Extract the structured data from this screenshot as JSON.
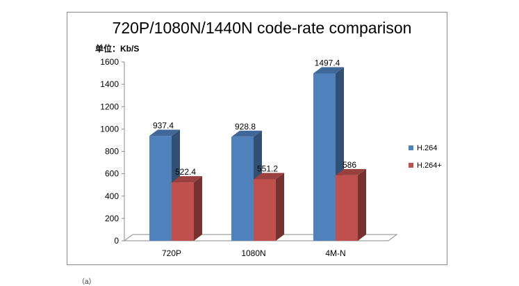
{
  "chart_data": {
    "type": "bar",
    "title": "720P/1080N/1440N code-rate comparison",
    "unit_label": "单位：Kb/S",
    "categories": [
      "720P",
      "1080N",
      "4M-N"
    ],
    "series": [
      {
        "name": "H.264",
        "color": "#4f81bd",
        "values": [
          937.4,
          928.8,
          1497.4
        ],
        "labels": [
          "937.4",
          "928.8",
          "1497.4"
        ]
      },
      {
        "name": "H.264+",
        "color": "#c0504d",
        "values": [
          522.4,
          551.2,
          586
        ],
        "labels": [
          "522.4",
          "551.2",
          "586"
        ]
      }
    ],
    "ylim": [
      0,
      1600
    ],
    "yticks": [
      0,
      200,
      400,
      600,
      800,
      1000,
      1200,
      1400,
      1600
    ],
    "grid": false,
    "legend": "right",
    "style": "3d-clustered-column"
  },
  "footnote": "（a）"
}
